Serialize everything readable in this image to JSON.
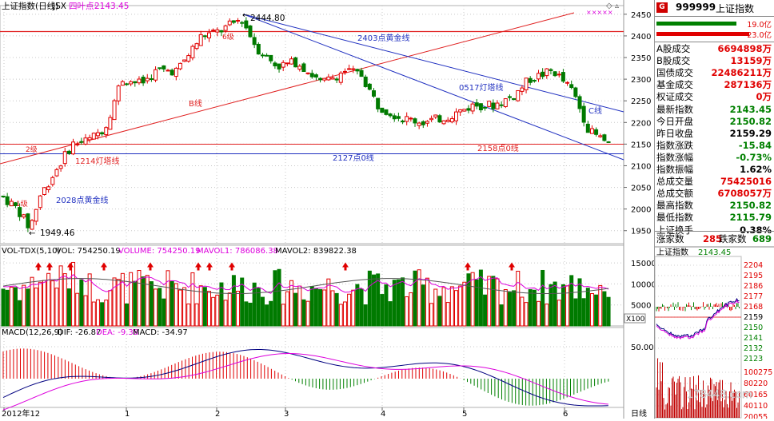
{
  "header": {
    "title": "上证指数(日线)",
    "code": "JSX",
    "cursor_label": "四叶点:",
    "cursor_value": "2143.45",
    "marks": "×××××"
  },
  "volume_header": {
    "name": "VOL-TDX(5,10)",
    "vol": "VOL: 754250.19",
    "volume": "VOLUME: 754250.19",
    "mavol1": "MAVOL1: 786086.38",
    "mavol2": "MAVOL2: 839822.38"
  },
  "macd_header": {
    "name": "MACD(12,26,9)",
    "dif": "DIF: -26.87",
    "dea": "DEA: -9.38",
    "macd": "MACD: -34.97"
  },
  "annotations": {
    "high": "2444.80",
    "low": "1949.46",
    "l2403": "2403点黄金线",
    "l0517": "0517灯塔线",
    "lB": "B线",
    "lC": "C线",
    "l1214": "1214灯塔线",
    "l2158": "2158点0线",
    "l2127": "2127点0线",
    "l2028": "2028点黄金线",
    "w1": "1级",
    "w2": "2级",
    "w6": "6级",
    "x100": "X100",
    "period": "日线"
  },
  "chart_data": [
    {
      "type": "candlestick",
      "title": "上证指数(日线)",
      "x_ticks": [
        "2012年12",
        "1",
        "2",
        "3",
        "4",
        "5",
        "6"
      ],
      "y_ticks": [
        1950,
        2000,
        2050,
        2100,
        2150,
        2200,
        2250,
        2300,
        2350,
        2400,
        2450
      ],
      "ylim": [
        1920,
        2470
      ],
      "horizontal_lines": [
        2403,
        2158,
        2127
      ],
      "grid": true,
      "ohlc": []
    },
    {
      "type": "bar",
      "title": "VOL-TDX(5,10)",
      "y_ticks": [
        5000,
        10000,
        15000
      ],
      "unit": "X100",
      "ylim": [
        0,
        17500
      ]
    },
    {
      "type": "line",
      "title": "MACD(12,26,9)",
      "y_ticks": [
        50.0
      ],
      "series": [
        {
          "name": "DIF",
          "color": "#000080"
        },
        {
          "name": "DEA",
          "color": "#dd00dd"
        },
        {
          "name": "MACD",
          "color": "#008000"
        }
      ]
    }
  ],
  "sidebar": {
    "code": "999999",
    "name": "上证指数",
    "bar1": "19.0亿",
    "bar2": "23.0亿",
    "rows": [
      {
        "k": "A股成交",
        "v": "6694898万",
        "c": "up"
      },
      {
        "k": "B股成交",
        "v": "13159万",
        "c": "up"
      },
      {
        "k": "国债成交",
        "v": "22486211万",
        "c": "up"
      },
      {
        "k": "基金成交",
        "v": "287136万",
        "c": "up"
      },
      {
        "k": "权证成交",
        "v": "0万",
        "c": "up"
      },
      {
        "k": "最新指数",
        "v": "2143.45",
        "c": "dn"
      },
      {
        "k": "今日开盘",
        "v": "2150.82",
        "c": "dn"
      },
      {
        "k": "昨日收盘",
        "v": "2159.29",
        "c": "bk"
      },
      {
        "k": "指数涨跌",
        "v": "-15.84",
        "c": "dn"
      },
      {
        "k": "指数涨幅",
        "v": "-0.73%",
        "c": "dn"
      },
      {
        "k": "指数振幅",
        "v": "1.62%",
        "c": "bk"
      },
      {
        "k": "总成交量",
        "v": "75425016",
        "c": "up"
      },
      {
        "k": "总成交额",
        "v": "6708057万",
        "c": "up"
      },
      {
        "k": "最高指数",
        "v": "2150.82",
        "c": "dn"
      },
      {
        "k": "最低指数",
        "v": "2115.79",
        "c": "dn"
      },
      {
        "k": "上证换手",
        "v": "0.38%",
        "c": "bk"
      }
    ],
    "adv_label": "涨家数",
    "adv": "285",
    "dec_label": "跌家数",
    "dec": "689",
    "mini_title": "上证指数",
    "mini_value": "2143.45",
    "mini_ticks": [
      "2204",
      "2195",
      "2186",
      "2177",
      "2168",
      "2159",
      "2150",
      "2141",
      "2132",
      "2123",
      "100275",
      "80220",
      "60165",
      "40110",
      "20055"
    ],
    "watermark": "178448.com"
  }
}
